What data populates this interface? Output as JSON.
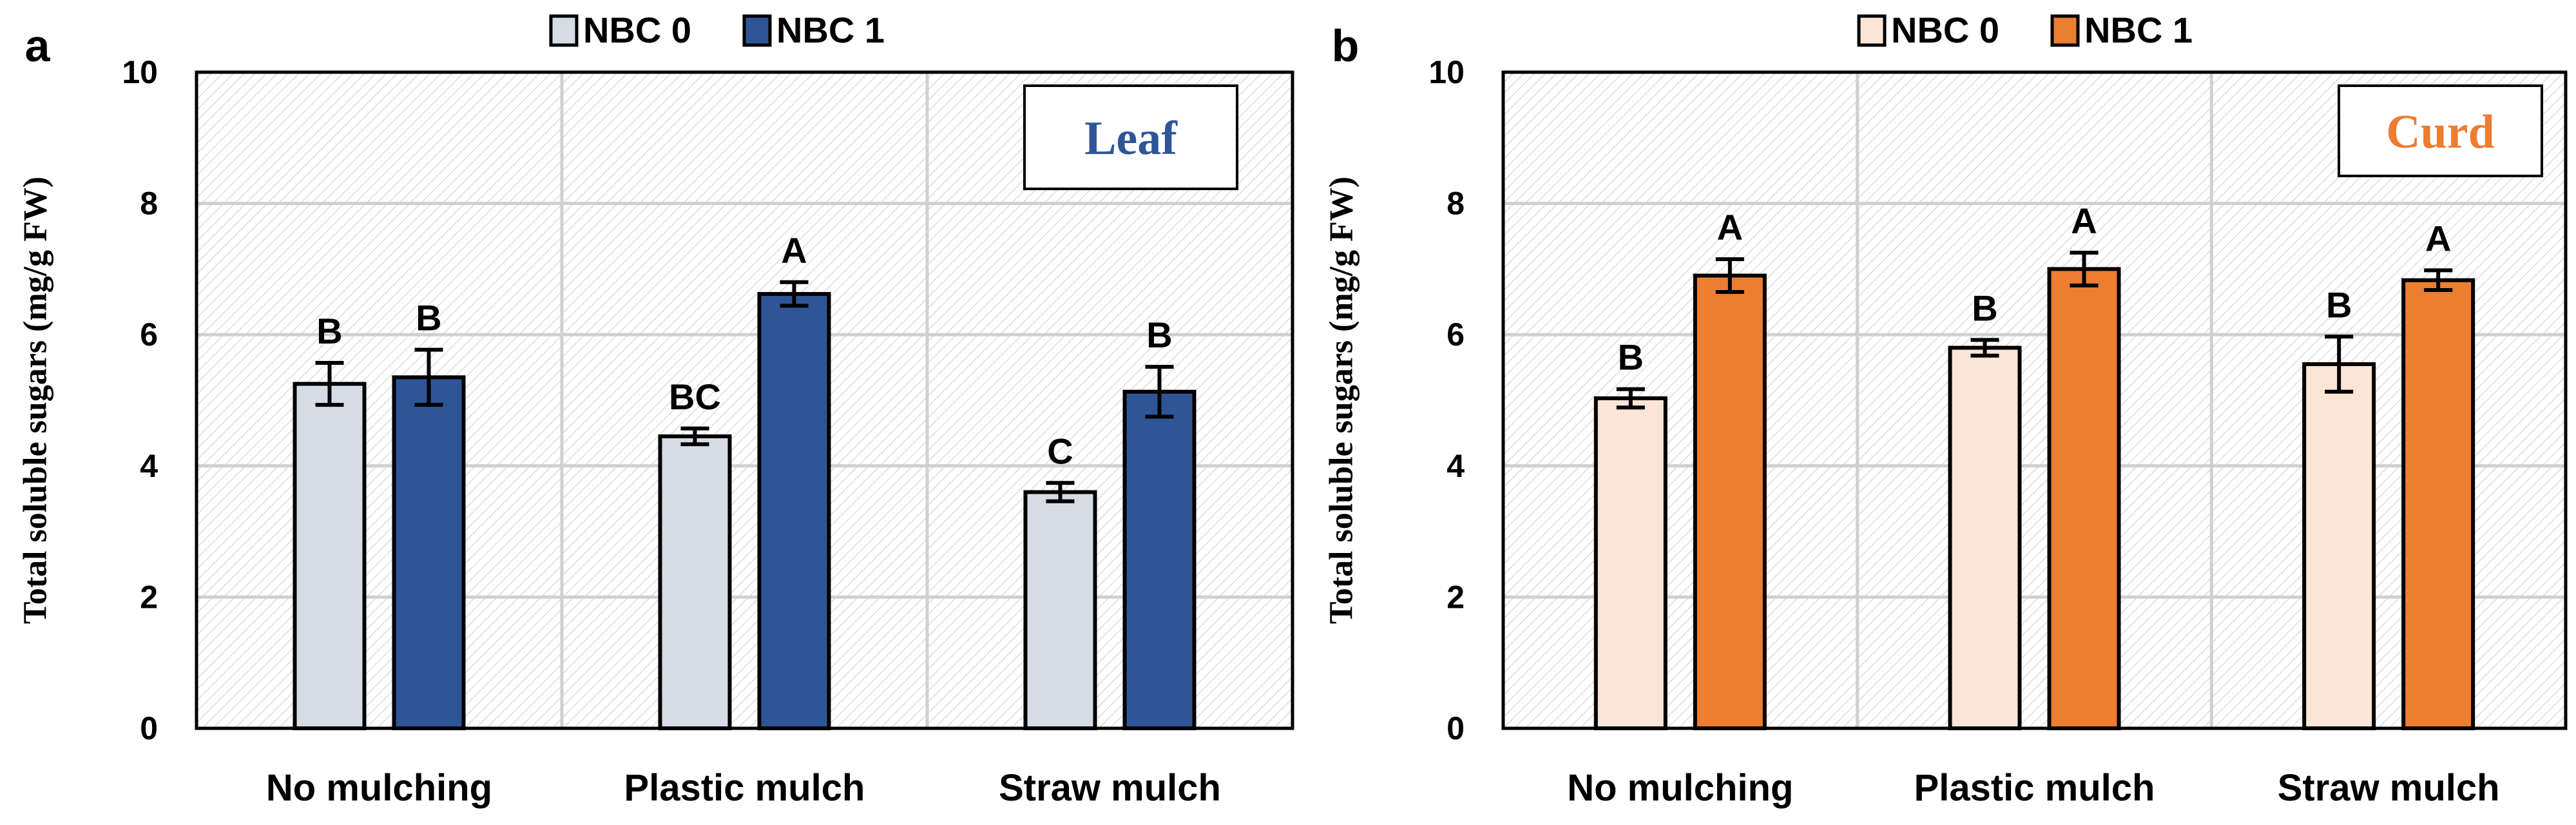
{
  "figure": {
    "panels": [
      {
        "letter": "a",
        "inset_label": "Leaf"
      },
      {
        "letter": "b",
        "inset_label": "Curd"
      }
    ]
  },
  "chart_data": [
    {
      "type": "bar",
      "panel": "a",
      "title": "Leaf",
      "xlabel": "",
      "ylabel": "Total soluble sugars (mg/g FW)",
      "ylim": [
        0,
        10
      ],
      "yticks": [
        0,
        2,
        4,
        6,
        8,
        10
      ],
      "grid": true,
      "legend_position": "top-center",
      "categories": [
        "No mulching",
        "Plastic mulch",
        "Straw mulch"
      ],
      "series": [
        {
          "name": "NBC 0",
          "color": "#d6dce5",
          "values": [
            5.25,
            4.45,
            3.6
          ],
          "errors": [
            0.32,
            0.12,
            0.14
          ],
          "letters": [
            "B",
            "BC",
            "C"
          ]
        },
        {
          "name": "NBC 1",
          "color": "#2f5597",
          "values": [
            5.35,
            6.62,
            5.13
          ],
          "errors": [
            0.42,
            0.18,
            0.38
          ],
          "letters": [
            "B",
            "A",
            "B"
          ]
        }
      ]
    },
    {
      "type": "bar",
      "panel": "b",
      "title": "Curd",
      "xlabel": "",
      "ylabel": "Total soluble sugars (mg/g FW)",
      "ylim": [
        0,
        10
      ],
      "yticks": [
        0,
        2,
        4,
        6,
        8,
        10
      ],
      "grid": true,
      "legend_position": "top-center",
      "categories": [
        "No mulching",
        "Plastic mulch",
        "Straw mulch"
      ],
      "series": [
        {
          "name": "NBC 0",
          "color": "#fbe5d6",
          "values": [
            5.03,
            5.8,
            5.55
          ],
          "errors": [
            0.14,
            0.12,
            0.42
          ],
          "letters": [
            "B",
            "B",
            "B"
          ]
        },
        {
          "name": "NBC 1",
          "color": "#ed7d31",
          "values": [
            6.9,
            7.0,
            6.83
          ],
          "errors": [
            0.25,
            0.25,
            0.15
          ],
          "letters": [
            "A",
            "A",
            "A"
          ]
        }
      ]
    }
  ]
}
